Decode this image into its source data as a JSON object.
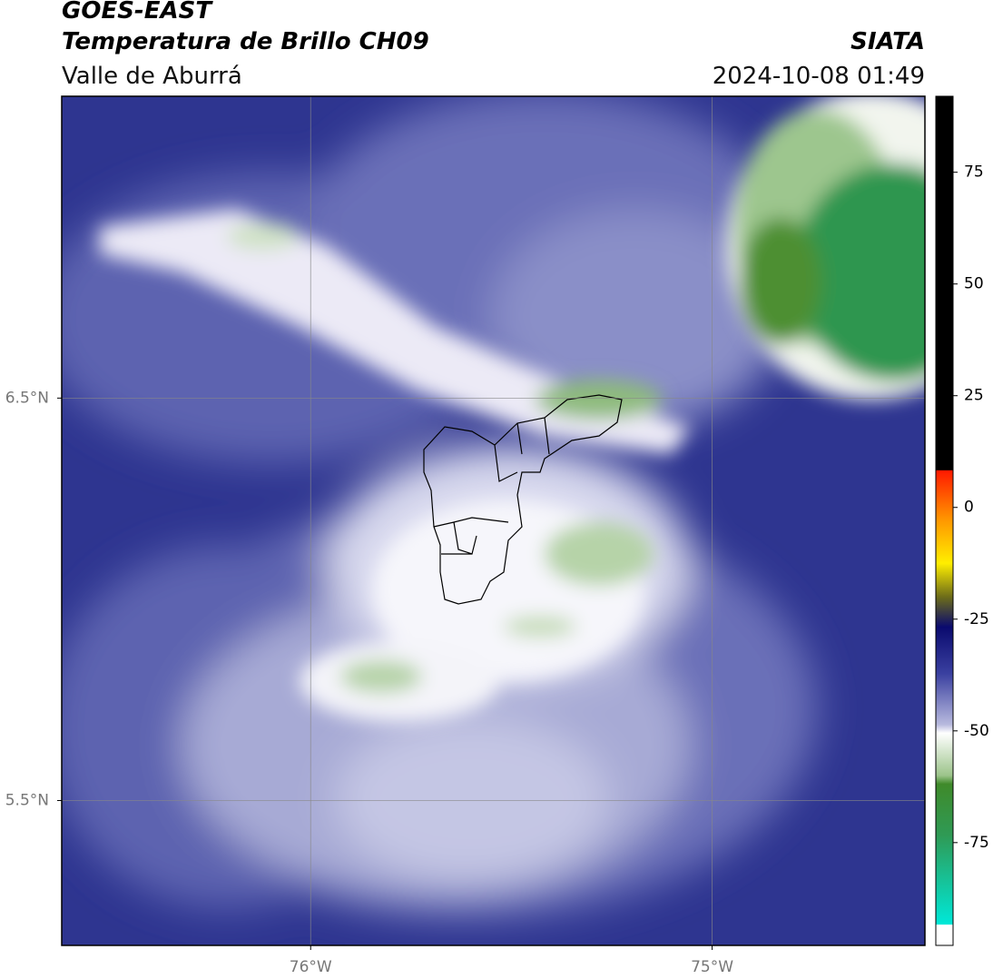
{
  "header": {
    "title": "GOES-EAST",
    "subtitle": "Temperatura de Brillo CH09",
    "region": "Valle de Aburrá",
    "source": "SIATA",
    "datetime": "2024-10-08 01:49"
  },
  "map": {
    "xlim": [
      -76.62,
      -74.47
    ],
    "ylim": [
      5.14,
      7.25
    ],
    "xticks": [
      {
        "value": -76,
        "label": "76°W"
      },
      {
        "value": -75,
        "label": "75°W"
      }
    ],
    "yticks": [
      {
        "value": 6.5,
        "label": "6.5°N"
      },
      {
        "value": 5.5,
        "label": "5.5°N"
      }
    ],
    "grid": true
  },
  "colorbar": {
    "lim": [
      -98,
      92
    ],
    "ticks": [
      75,
      50,
      25,
      0,
      -25,
      -50,
      -75
    ]
  }
}
